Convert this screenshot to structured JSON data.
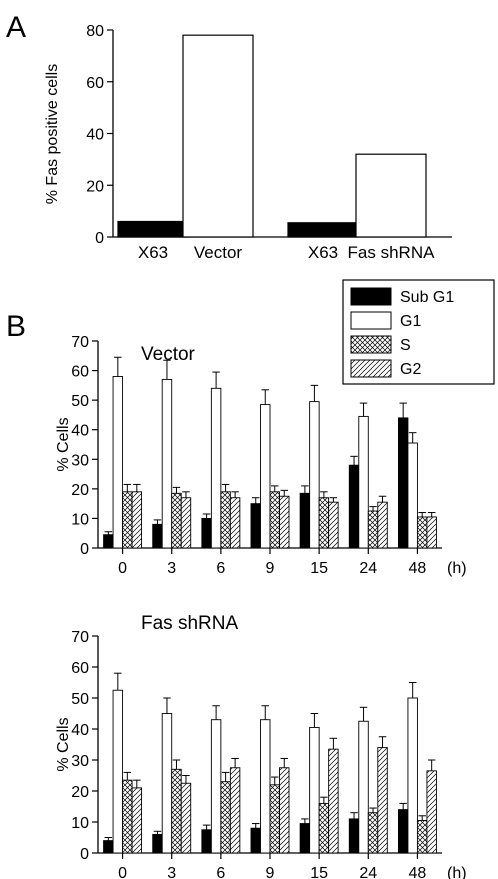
{
  "figure": {
    "panel_a_letter": "A",
    "panel_b_letter": "B"
  },
  "colors": {
    "black": "#000000",
    "white": "#ffffff"
  },
  "chart_data": [
    {
      "type": "bar",
      "panel": "A",
      "ylabel": "% Fas positive cells",
      "ylim": [
        0,
        80
      ],
      "yticks": [
        0,
        20,
        40,
        60,
        80
      ],
      "groups": [
        {
          "bars": [
            {
              "label": "X63",
              "value": 6,
              "fill": "black"
            },
            {
              "label": "Vector",
              "value": 78,
              "fill": "white"
            }
          ]
        },
        {
          "bars": [
            {
              "label": "X63",
              "value": 5.5,
              "fill": "black"
            },
            {
              "label": "Fas shRNA",
              "value": 32,
              "fill": "white"
            }
          ]
        }
      ],
      "grid": false
    },
    {
      "type": "bar",
      "panel": "B",
      "subtitle": "Vector",
      "ylabel": "% Cells",
      "xunit": "(h)",
      "ylim": [
        0,
        70
      ],
      "yticks": [
        0,
        10,
        20,
        30,
        40,
        50,
        60,
        70
      ],
      "categories": [
        "0",
        "3",
        "6",
        "9",
        "15",
        "24",
        "48"
      ],
      "legend": {
        "position": "top-right",
        "entries": [
          "Sub G1",
          "G1",
          "S",
          "G2"
        ]
      },
      "series": [
        {
          "name": "Sub G1",
          "fill": "black",
          "values": [
            4.5,
            8,
            10,
            15,
            18.5,
            28,
            44
          ],
          "errors": [
            1,
            1.5,
            1.5,
            2,
            2.5,
            3,
            5
          ]
        },
        {
          "name": "G1",
          "fill": "white",
          "values": [
            58,
            57,
            54,
            48.5,
            49.5,
            44.5,
            35.5
          ],
          "errors": [
            6.5,
            6.5,
            5.5,
            5,
            5.5,
            4.5,
            3.5
          ]
        },
        {
          "name": "S",
          "fill": "crosshatch",
          "values": [
            19,
            18.5,
            19,
            19,
            17,
            12.5,
            10.5
          ],
          "errors": [
            2.5,
            2,
            2.5,
            2,
            2,
            1.5,
            1.5
          ]
        },
        {
          "name": "G2",
          "fill": "diagonal",
          "values": [
            19,
            17,
            17,
            17.5,
            15.5,
            15.5,
            10.5
          ],
          "errors": [
            2.5,
            2,
            2,
            2,
            1.5,
            2,
            1.5
          ]
        }
      ],
      "grid": false
    },
    {
      "type": "bar",
      "panel": "B",
      "subtitle": "Fas shRNA",
      "ylabel": "% Cells",
      "xunit": "(h)",
      "ylim": [
        0,
        70
      ],
      "yticks": [
        0,
        10,
        20,
        30,
        40,
        50,
        60,
        70
      ],
      "categories": [
        "0",
        "3",
        "6",
        "9",
        "15",
        "24",
        "48"
      ],
      "series": [
        {
          "name": "Sub G1",
          "fill": "black",
          "values": [
            4,
            6,
            7.5,
            8,
            9.5,
            11,
            14
          ],
          "errors": [
            1,
            1,
            1.5,
            1.5,
            1.5,
            2,
            2
          ]
        },
        {
          "name": "G1",
          "fill": "white",
          "values": [
            52.5,
            45,
            43,
            43,
            40.5,
            42.5,
            50
          ],
          "errors": [
            5.5,
            5,
            4.5,
            4.5,
            4.5,
            4.5,
            5
          ]
        },
        {
          "name": "S",
          "fill": "crosshatch",
          "values": [
            23.5,
            27,
            23,
            22,
            16,
            13,
            10.5
          ],
          "errors": [
            2.5,
            3,
            3,
            2.5,
            2,
            1.5,
            1.5
          ]
        },
        {
          "name": "G2",
          "fill": "diagonal",
          "values": [
            21,
            22.5,
            27.5,
            27.5,
            33.5,
            34,
            26.5
          ],
          "errors": [
            2.5,
            2.5,
            3,
            3,
            3.5,
            3.5,
            3.5
          ]
        }
      ],
      "grid": false
    }
  ]
}
